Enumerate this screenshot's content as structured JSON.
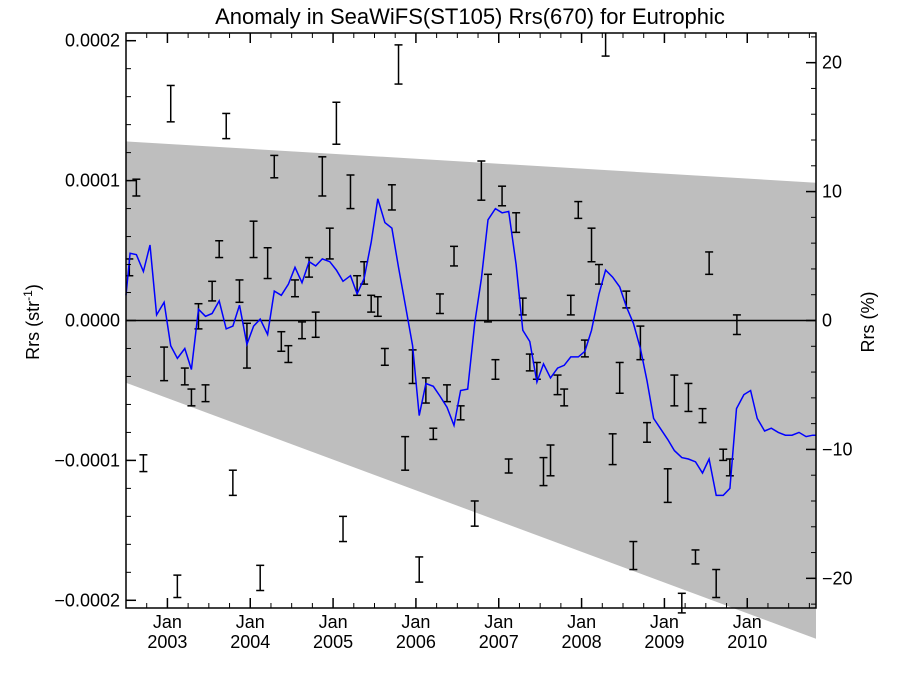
{
  "chart_data": {
    "type": "line",
    "title": "Anomaly in SeaWiFS(ST105) Rrs(670) for Eutrophic",
    "ylabel_left": "Rrs (str",
    "ylabel_left_superscript": "-1",
    "ylabel_left_suffix": ")",
    "ylabel_right": "Rrs (%)",
    "x_range": [
      2002.5,
      2010.83
    ],
    "ylim": [
      -0.0002055,
      0.0002055
    ],
    "right_ylim": [
      -22.3,
      22.3
    ],
    "grid": false,
    "left_ticks": [
      {
        "value": 0.0002,
        "label": "0.0002"
      },
      {
        "value": 0.0001,
        "label": "0.0001"
      },
      {
        "value": 0.0,
        "label": "0.0000"
      },
      {
        "value": -0.0001,
        "label": "−0.0001"
      },
      {
        "value": -0.0002,
        "label": "−0.0002"
      }
    ],
    "right_ticks": [
      {
        "value": 20,
        "label": "20"
      },
      {
        "value": 10,
        "label": "10"
      },
      {
        "value": 0,
        "label": "0"
      },
      {
        "value": -10,
        "label": "−10"
      },
      {
        "value": -20,
        "label": "−20"
      }
    ],
    "x_ticks": [
      {
        "value": 2003.0,
        "month": "Jan",
        "year": "2003"
      },
      {
        "value": 2004.0,
        "month": "Jan",
        "year": "2004"
      },
      {
        "value": 2005.0,
        "month": "Jan",
        "year": "2005"
      },
      {
        "value": 2006.0,
        "month": "Jan",
        "year": "2006"
      },
      {
        "value": 2007.0,
        "month": "Jan",
        "year": "2007"
      },
      {
        "value": 2008.0,
        "month": "Jan",
        "year": "2008"
      },
      {
        "value": 2009.0,
        "month": "Jan",
        "year": "2009"
      },
      {
        "value": 2010.0,
        "month": "Jan",
        "year": "2010"
      }
    ],
    "band": {
      "color": "#bebebe",
      "upper": [
        [
          2002.5,
          0.000128
        ],
        [
          2010.83,
          9.85e-05
        ]
      ],
      "lower": [
        [
          2002.5,
          -4.45e-05
        ],
        [
          2010.83,
          -0.0002275
        ]
      ]
    },
    "zero_line": true,
    "series": [
      {
        "type": "line",
        "color": "#0000ff",
        "points": [
          [
            2002.5,
            1.8e-05
          ],
          [
            2002.55,
            4.8e-05
          ],
          [
            2002.625,
            4.7e-05
          ],
          [
            2002.71,
            3.5e-05
          ],
          [
            2002.79,
            5.4e-05
          ],
          [
            2002.87,
            4e-06
          ],
          [
            2002.96,
            1.3e-05
          ],
          [
            2003.04,
            -1.8e-05
          ],
          [
            2003.12,
            -2.7e-05
          ],
          [
            2003.21,
            -2e-05
          ],
          [
            2003.29,
            -3.5e-05
          ],
          [
            2003.375,
            8e-06
          ],
          [
            2003.46,
            3e-06
          ],
          [
            2003.54,
            5e-06
          ],
          [
            2003.625,
            1.4e-05
          ],
          [
            2003.71,
            -6e-06
          ],
          [
            2003.79,
            -4e-06
          ],
          [
            2003.87,
            1.1e-05
          ],
          [
            2003.96,
            -1.7e-05
          ],
          [
            2004.04,
            -4e-06
          ],
          [
            2004.12,
            1e-06
          ],
          [
            2004.21,
            -1e-05
          ],
          [
            2004.29,
            2.1e-05
          ],
          [
            2004.375,
            1.8e-05
          ],
          [
            2004.46,
            2.6e-05
          ],
          [
            2004.54,
            3.8e-05
          ],
          [
            2004.625,
            2.7e-05
          ],
          [
            2004.71,
            4.2e-05
          ],
          [
            2004.79,
            3.9e-05
          ],
          [
            2004.87,
            4.4e-05
          ],
          [
            2004.96,
            4.2e-05
          ],
          [
            2005.04,
            3.6e-05
          ],
          [
            2005.12,
            2.8e-05
          ],
          [
            2005.21,
            3.2e-05
          ],
          [
            2005.29,
            1.9e-05
          ],
          [
            2005.375,
            3e-05
          ],
          [
            2005.46,
            5.6e-05
          ],
          [
            2005.54,
            8.7e-05
          ],
          [
            2005.625,
            7e-05
          ],
          [
            2005.71,
            6.6e-05
          ],
          [
            2005.79,
            3.8e-05
          ],
          [
            2005.87,
            1.2e-05
          ],
          [
            2005.96,
            -1.8e-05
          ],
          [
            2006.04,
            -6.8e-05
          ],
          [
            2006.12,
            -4.5e-05
          ],
          [
            2006.21,
            -4.7e-05
          ],
          [
            2006.29,
            -5.4e-05
          ],
          [
            2006.375,
            -6.2e-05
          ],
          [
            2006.46,
            -7.5e-05
          ],
          [
            2006.54,
            -5e-05
          ],
          [
            2006.625,
            -4.9e-05
          ],
          [
            2006.71,
            -2e-06
          ],
          [
            2006.79,
            3e-05
          ],
          [
            2006.87,
            7.2e-05
          ],
          [
            2006.96,
            8e-05
          ],
          [
            2007.04,
            7.7e-05
          ],
          [
            2007.12,
            7.8e-05
          ],
          [
            2007.21,
            4e-05
          ],
          [
            2007.29,
            -7e-06
          ],
          [
            2007.375,
            -1.5e-05
          ],
          [
            2007.46,
            -4.4e-05
          ],
          [
            2007.54,
            -3.1e-05
          ],
          [
            2007.625,
            -4.1e-05
          ],
          [
            2007.71,
            -3.4e-05
          ],
          [
            2007.79,
            -3.2e-05
          ],
          [
            2007.87,
            -2.6e-05
          ],
          [
            2007.96,
            -2.6e-05
          ],
          [
            2008.04,
            -2.2e-05
          ],
          [
            2008.12,
            -7e-06
          ],
          [
            2008.21,
            1.9e-05
          ],
          [
            2008.29,
            3.6e-05
          ],
          [
            2008.375,
            3.1e-05
          ],
          [
            2008.46,
            2.4e-05
          ],
          [
            2008.54,
            1e-05
          ],
          [
            2008.625,
            -2e-06
          ],
          [
            2008.71,
            -2e-05
          ],
          [
            2008.79,
            -4.3e-05
          ],
          [
            2008.87,
            -7e-05
          ],
          [
            2008.96,
            -7.8e-05
          ],
          [
            2009.04,
            -8.5e-05
          ],
          [
            2009.12,
            -9.3e-05
          ],
          [
            2009.21,
            -9.8e-05
          ],
          [
            2009.29,
            -9.9e-05
          ],
          [
            2009.375,
            -0.000101
          ],
          [
            2009.46,
            -0.000109
          ],
          [
            2009.54,
            -9.9e-05
          ],
          [
            2009.625,
            -0.000125
          ],
          [
            2009.71,
            -0.000125
          ],
          [
            2009.79,
            -0.00012
          ],
          [
            2009.87,
            -6.3e-05
          ],
          [
            2009.96,
            -5.3e-05
          ],
          [
            2010.04,
            -5e-05
          ],
          [
            2010.12,
            -7e-05
          ],
          [
            2010.21,
            -7.9e-05
          ],
          [
            2010.29,
            -7.7e-05
          ],
          [
            2010.375,
            -8e-05
          ],
          [
            2010.46,
            -8.2e-05
          ],
          [
            2010.54,
            -8.2e-05
          ],
          [
            2010.625,
            -8e-05
          ],
          [
            2010.71,
            -8.3e-05
          ],
          [
            2010.79,
            -8.2e-05
          ],
          [
            2010.83,
            -8.2e-05
          ]
        ]
      },
      {
        "type": "errorbar",
        "color": "#000000",
        "points": [
          [
            2002.54,
            3.8e-05,
            6e-06
          ],
          [
            2002.625,
            9.5e-05,
            6e-06
          ],
          [
            2002.71,
            -0.000102,
            6e-06
          ],
          [
            2002.96,
            -3.1e-05,
            1.2e-05
          ],
          [
            2003.04,
            0.000155,
            1.3e-05
          ],
          [
            2003.12,
            -0.00019,
            8e-06
          ],
          [
            2003.21,
            -4e-05,
            6e-06
          ],
          [
            2003.29,
            -5.5e-05,
            6e-06
          ],
          [
            2003.375,
            3e-06,
            9e-06
          ],
          [
            2003.46,
            -5.2e-05,
            6e-06
          ],
          [
            2003.54,
            2.1e-05,
            7e-06
          ],
          [
            2003.625,
            5.1e-05,
            6e-06
          ],
          [
            2003.71,
            0.000139,
            9e-06
          ],
          [
            2003.79,
            -0.000116,
            9e-06
          ],
          [
            2003.87,
            2.1e-05,
            8e-06
          ],
          [
            2003.96,
            -1.8e-05,
            1.6e-05
          ],
          [
            2004.04,
            5.8e-05,
            1.3e-05
          ],
          [
            2004.12,
            -0.000184,
            9e-06
          ],
          [
            2004.21,
            4.1e-05,
            1.1e-05
          ],
          [
            2004.29,
            0.00011,
            8e-06
          ],
          [
            2004.375,
            -1.5e-05,
            7e-06
          ],
          [
            2004.46,
            -2.4e-05,
            6e-06
          ],
          [
            2004.54,
            2.3e-05,
            6e-06
          ],
          [
            2004.625,
            -7e-06,
            6e-06
          ],
          [
            2004.71,
            3.8e-05,
            7e-06
          ],
          [
            2004.79,
            -3e-06,
            9e-06
          ],
          [
            2004.87,
            0.000103,
            1.4e-05
          ],
          [
            2004.96,
            5.5e-05,
            1.1e-05
          ],
          [
            2005.04,
            0.000141,
            1.5e-05
          ],
          [
            2005.12,
            -0.000149,
            9e-06
          ],
          [
            2005.21,
            9.2e-05,
            1.2e-05
          ],
          [
            2005.29,
            2.5e-05,
            7e-06
          ],
          [
            2005.375,
            3.4e-05,
            8e-06
          ],
          [
            2005.46,
            1.2e-05,
            6e-06
          ],
          [
            2005.54,
            1e-05,
            7e-06
          ],
          [
            2005.625,
            -2.6e-05,
            6e-06
          ],
          [
            2005.71,
            8.8e-05,
            9e-06
          ],
          [
            2005.79,
            0.000183,
            1.4e-05
          ],
          [
            2005.87,
            -9.5e-05,
            1.2e-05
          ],
          [
            2005.96,
            -3.3e-05,
            1.2e-05
          ],
          [
            2006.04,
            -0.000178,
            9e-06
          ],
          [
            2006.12,
            -5e-05,
            9e-06
          ],
          [
            2006.21,
            -8.1e-05,
            4e-06
          ],
          [
            2006.29,
            1.2e-05,
            7e-06
          ],
          [
            2006.375,
            -5.2e-05,
            6e-06
          ],
          [
            2006.46,
            4.6e-05,
            7e-06
          ],
          [
            2006.54,
            -6.6e-05,
            5e-06
          ],
          [
            2006.71,
            -0.000138,
            9e-06
          ],
          [
            2006.79,
            0.0001,
            1.4e-05
          ],
          [
            2006.87,
            1.6e-05,
            1.7e-05
          ],
          [
            2006.96,
            -3.5e-05,
            7e-06
          ],
          [
            2007.04,
            8.9e-05,
            7e-06
          ],
          [
            2007.12,
            -0.000104,
            5e-06
          ],
          [
            2007.21,
            7e-05,
            7e-06
          ],
          [
            2007.29,
            1e-05,
            6e-06
          ],
          [
            2007.375,
            -3e-05,
            6e-06
          ],
          [
            2007.46,
            -3.6e-05,
            6e-06
          ],
          [
            2007.54,
            -0.000108,
            1e-05
          ],
          [
            2007.625,
            -0.0001,
            1.1e-05
          ],
          [
            2007.71,
            -4.6e-05,
            7e-06
          ],
          [
            2007.79,
            -5.5e-05,
            6e-06
          ],
          [
            2007.87,
            1.1e-05,
            7e-06
          ],
          [
            2007.96,
            7.9e-05,
            6e-06
          ],
          [
            2008.04,
            -2e-05,
            6e-06
          ],
          [
            2008.12,
            5.4e-05,
            1.2e-05
          ],
          [
            2008.21,
            3.3e-05,
            7e-06
          ],
          [
            2008.29,
            0.000198,
            9e-06
          ],
          [
            2008.375,
            -9.2e-05,
            1.1e-05
          ],
          [
            2008.46,
            -4.1e-05,
            1.1e-05
          ],
          [
            2008.54,
            1.5e-05,
            6e-06
          ],
          [
            2008.625,
            -0.000168,
            1e-05
          ],
          [
            2008.71,
            -1.6e-05,
            1.2e-05
          ],
          [
            2008.79,
            -8e-05,
            7e-06
          ],
          [
            2009.04,
            -0.000118,
            1.2e-05
          ],
          [
            2009.12,
            -5e-05,
            1.1e-05
          ],
          [
            2009.21,
            -0.000202,
            7e-06
          ],
          [
            2009.29,
            -5.5e-05,
            1e-05
          ],
          [
            2009.375,
            -0.000169,
            5e-06
          ],
          [
            2009.46,
            -6.8e-05,
            5e-06
          ],
          [
            2009.54,
            4.1e-05,
            8e-06
          ],
          [
            2009.625,
            -0.000188,
            1e-05
          ],
          [
            2009.71,
            -9.6e-05,
            4e-06
          ],
          [
            2009.79,
            -0.000105,
            6e-06
          ],
          [
            2009.875,
            -3e-06,
            7e-06
          ]
        ]
      }
    ]
  }
}
